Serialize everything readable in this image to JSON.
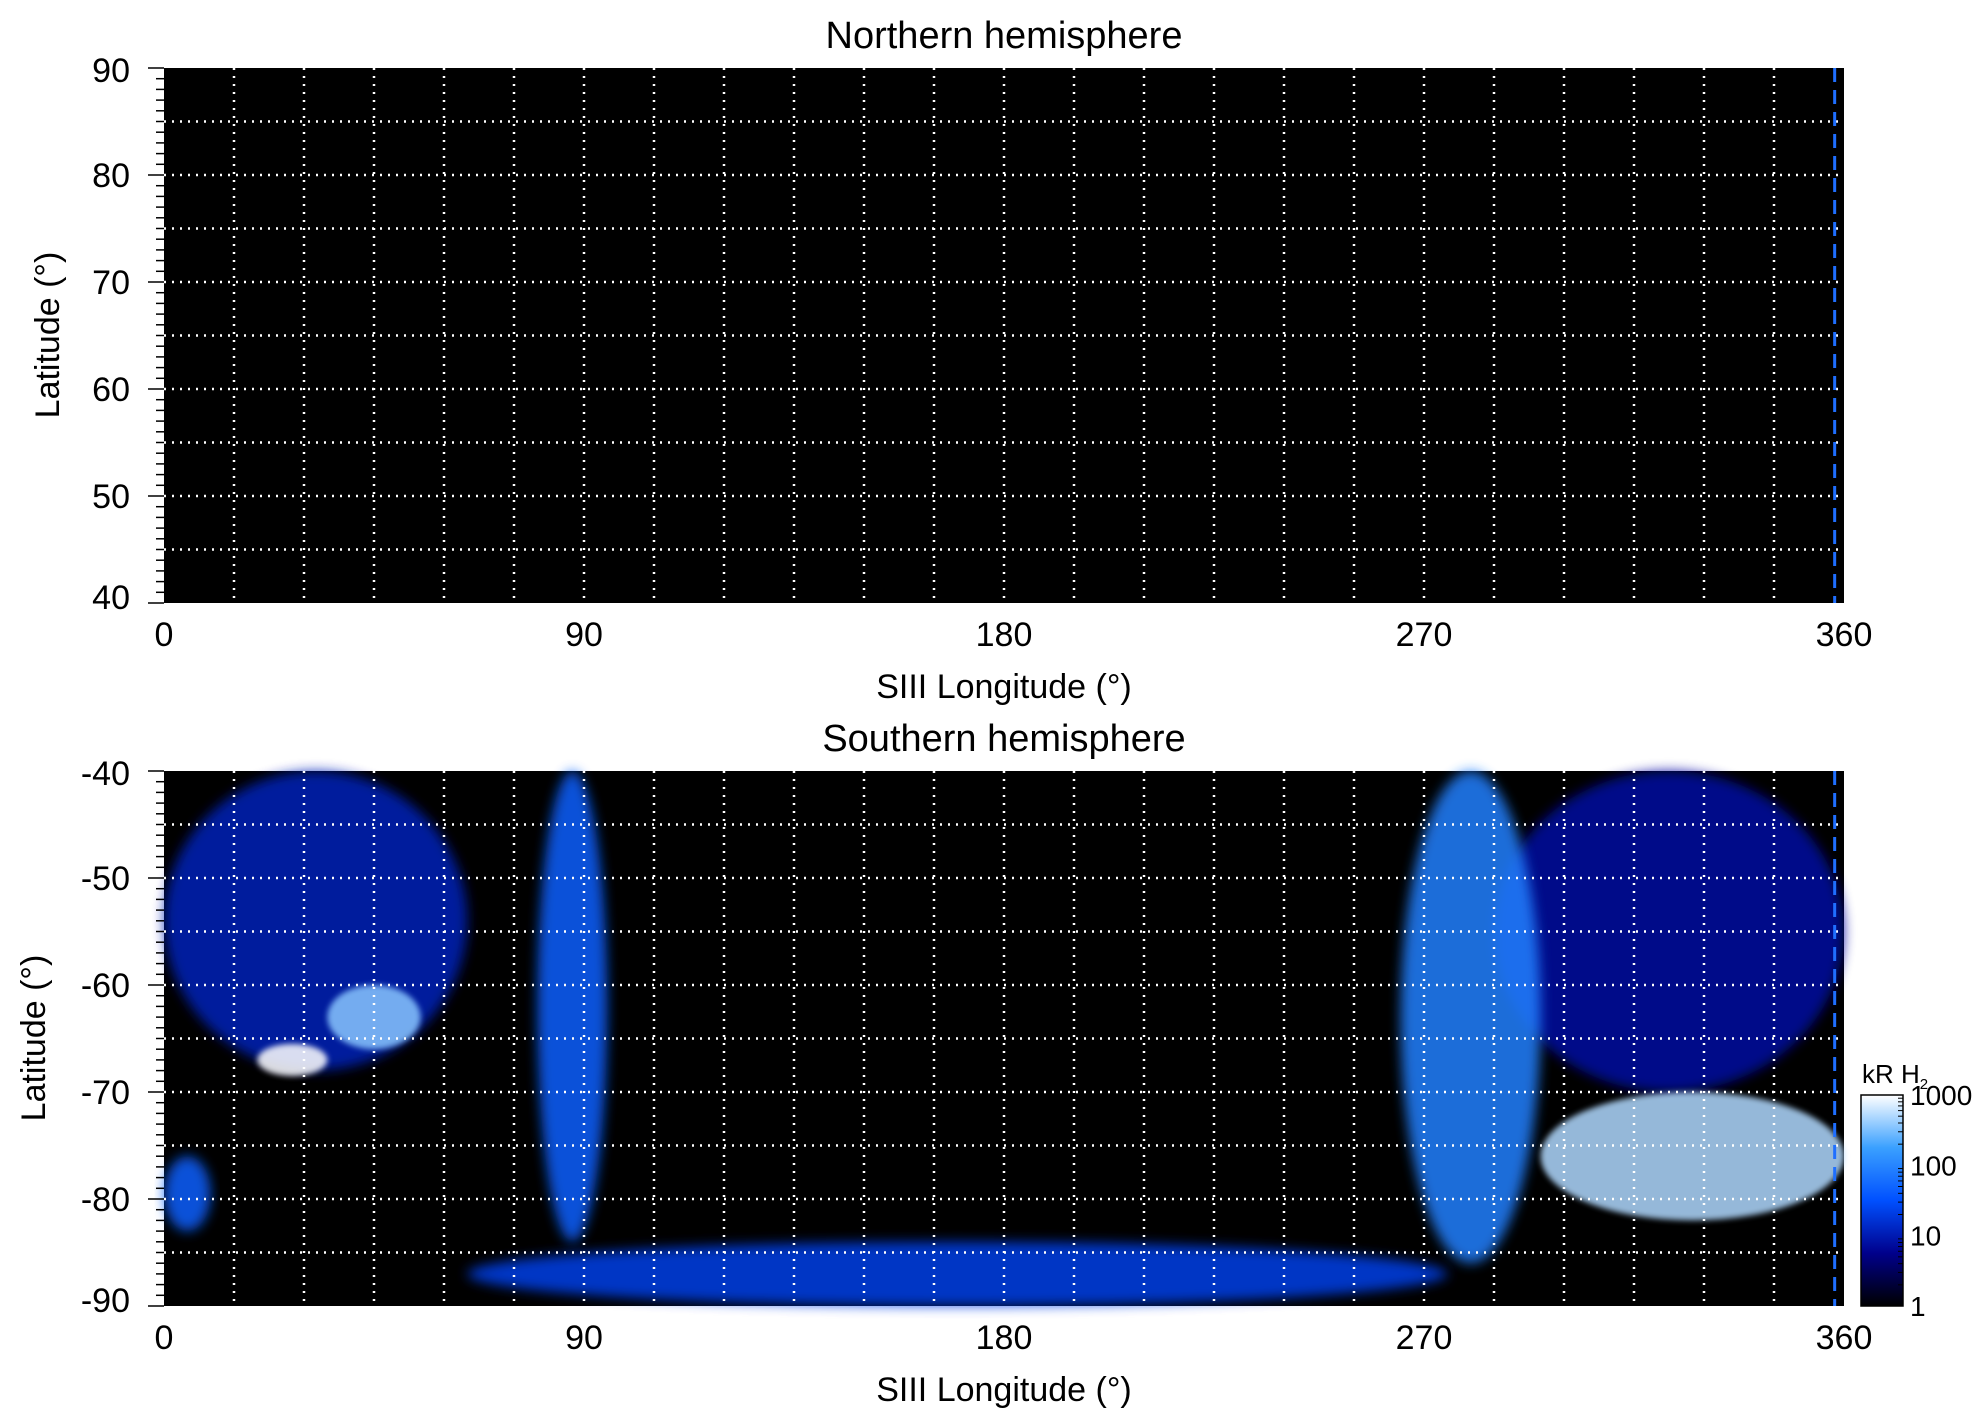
{
  "chart_data": [
    {
      "type": "heatmap",
      "title": "Northern hemisphere",
      "xlabel": "SIII Longitude (°)",
      "ylabel": "Latitude (°)",
      "xlim": [
        0,
        360
      ],
      "ylim": [
        40,
        90
      ],
      "x_ticks": [
        0,
        90,
        180,
        270,
        360
      ],
      "x_tick_labels": [
        "0",
        "90",
        "180",
        "270",
        "360"
      ],
      "y_ticks": [
        40,
        50,
        60,
        70,
        80,
        90
      ],
      "y_tick_labels": [
        "40",
        "50",
        "60",
        "70",
        "80",
        "90"
      ],
      "grid": true,
      "background": "#000000",
      "marker_line_longitude": 358,
      "emission": []
    },
    {
      "type": "heatmap",
      "title": "Southern hemisphere",
      "xlabel": "SIII Longitude (°)",
      "ylabel": "Latitude (°)",
      "xlim": [
        0,
        360
      ],
      "ylim": [
        -90,
        -40
      ],
      "x_ticks": [
        0,
        90,
        180,
        270,
        360
      ],
      "x_tick_labels": [
        "0",
        "90",
        "180",
        "270",
        "360"
      ],
      "y_ticks": [
        -40,
        -50,
        -60,
        -70,
        -80,
        -90
      ],
      "y_tick_labels": [
        "-40",
        "-50",
        "-60",
        "-70",
        "-80",
        "-90"
      ],
      "grid": true,
      "background": "#000000",
      "marker_line_longitude": 358,
      "emission": [
        {
          "name": "diffuse-background-west",
          "lon": [
            0,
            65
          ],
          "lat": [
            -68,
            -40
          ],
          "level": 0.35
        },
        {
          "name": "diffuse-background-east",
          "lon": [
            285,
            360
          ],
          "lat": [
            -70,
            -40
          ],
          "level": 0.3
        },
        {
          "name": "bright-spot-1",
          "lon": [
            20,
            35
          ],
          "lat": [
            -68.5,
            -65.5
          ],
          "level": 1.0
        },
        {
          "name": "bright-spot-2",
          "lon": [
            35,
            55
          ],
          "lat": [
            -66,
            -60
          ],
          "level": 0.85
        },
        {
          "name": "polar-band",
          "lon": [
            0,
            10
          ],
          "lat": [
            -83,
            -76
          ],
          "level": 0.55
        },
        {
          "name": "tongue-west",
          "lon": [
            80,
            95
          ],
          "lat": [
            -84,
            -40
          ],
          "level": 0.55
        },
        {
          "name": "tongue-east",
          "lon": [
            265,
            295
          ],
          "lat": [
            -86,
            -40
          ],
          "level": 0.65
        },
        {
          "name": "main-oval-arc",
          "lon": [
            295,
            360
          ],
          "lat": [
            -82,
            -70
          ],
          "level": 0.9
        },
        {
          "name": "polar-fan",
          "lon": [
            65,
            275
          ],
          "lat": [
            -90,
            -84
          ],
          "level": 0.45
        }
      ]
    }
  ],
  "colorbar": {
    "label": "kR H",
    "label_subscript": "2",
    "ticks": [
      1,
      10,
      100,
      1000
    ],
    "tick_labels": [
      "1",
      "10",
      "100",
      "1000"
    ],
    "scale": "log",
    "colors": [
      "#000000",
      "#00008b",
      "#0050ff",
      "#3aa0ff",
      "#ffffff"
    ]
  }
}
